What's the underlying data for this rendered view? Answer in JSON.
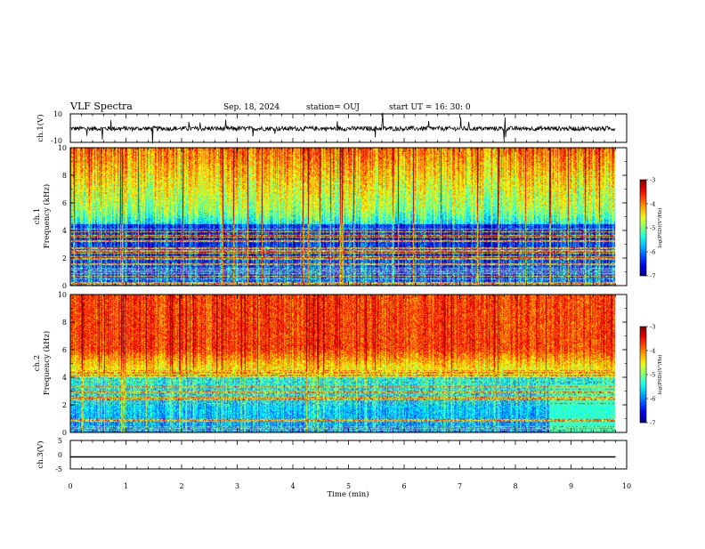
{
  "header": {
    "title": "VLF Spectra",
    "date": "Sep. 18, 2024",
    "station": "station= OUJ",
    "start": "start  UT  =   16: 30: 0"
  },
  "chart_data": [
    {
      "type": "line",
      "id": "ch1-waveform",
      "ylabel": "ch.1(V)",
      "ylim": [
        -10,
        10
      ],
      "yticks": [
        10,
        -10
      ],
      "xlim": [
        0,
        10
      ],
      "series_color": "#000000",
      "note_level": 0
    },
    {
      "type": "heatmap",
      "id": "ch1-spectrogram",
      "ylabel": "ch.1\nFrequency (kHz)",
      "ylabel_top": "ch.1",
      "ylabel_bottom": "Frequency (kHz)",
      "ylim": [
        0,
        10
      ],
      "yticks": [
        0,
        2,
        4,
        6,
        8,
        10
      ],
      "xlim": [
        0,
        9.8
      ],
      "colorbar": {
        "label": "log(PSD)(V²/Hz)",
        "min": -7,
        "max": -3,
        "ticks": [
          -3,
          -4,
          -5,
          -6,
          -7
        ]
      }
    },
    {
      "type": "heatmap",
      "id": "ch2-spectrogram",
      "ylabel_top": "ch.2",
      "ylabel_bottom": "Frequency (kHz)",
      "ylim": [
        0,
        10
      ],
      "yticks": [
        0,
        2,
        4,
        6,
        8,
        10
      ],
      "xlim": [
        0,
        9.8
      ],
      "colorbar": {
        "label": "log(PSD)(V²/Hz)",
        "min": -7,
        "max": -3,
        "ticks": [
          -3,
          -4,
          -5,
          -6,
          -7
        ]
      }
    },
    {
      "type": "line",
      "id": "ch3-waveform",
      "ylabel": "ch.3(V)",
      "ylim": [
        -5,
        5
      ],
      "yticks": [
        5,
        0,
        -5
      ],
      "xlim": [
        0,
        9.8
      ],
      "values_constant": -0.8,
      "series_color": "#000000"
    }
  ],
  "xaxis": {
    "label": "Time (min)",
    "ticks": [
      0,
      1,
      2,
      3,
      4,
      5,
      6,
      7,
      8,
      9,
      10
    ],
    "range": [
      0,
      10
    ]
  },
  "colors": {
    "axis": "#000000",
    "background": "#ffffff"
  }
}
